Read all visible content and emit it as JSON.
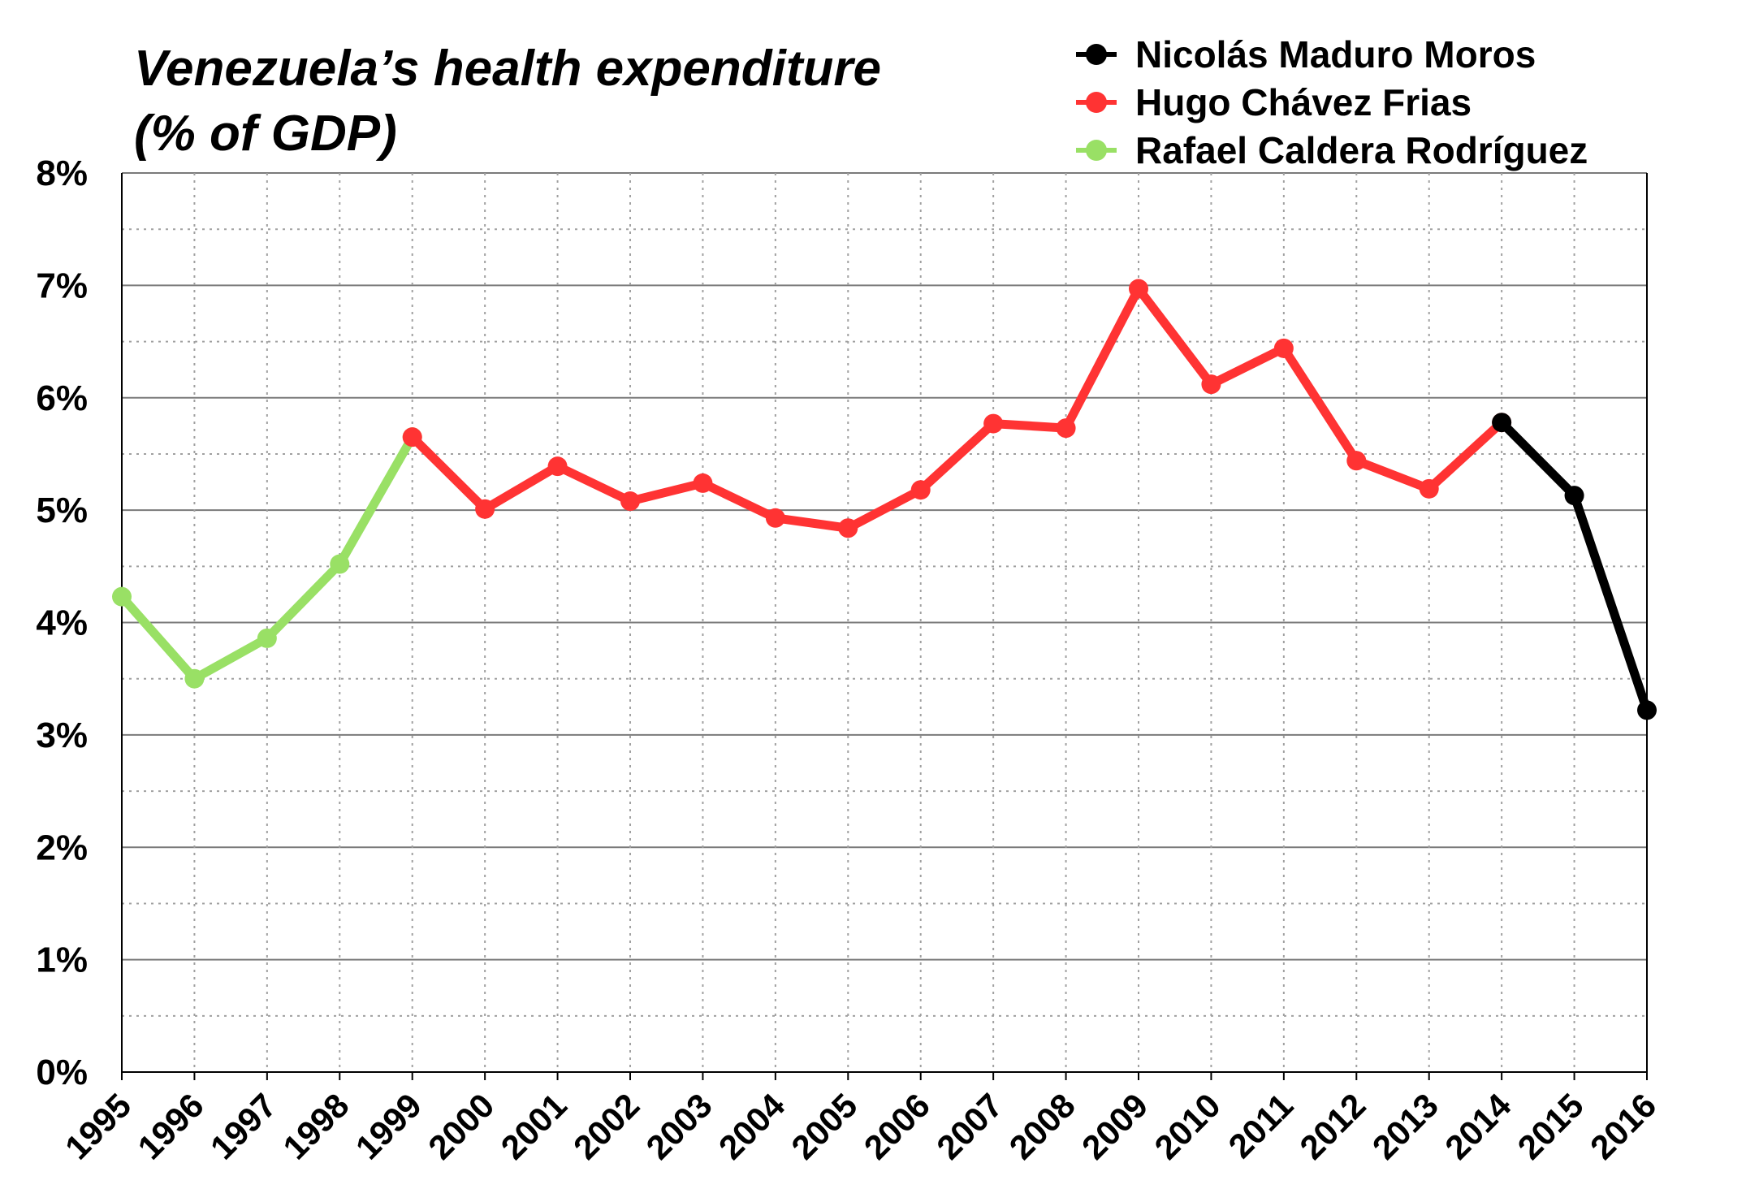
{
  "chart_data": {
    "type": "line",
    "title": "Venezuela’s health expenditure (% of GDP)",
    "title_lines": [
      "Venezuela’s health expenditure",
      "(% of GDP)"
    ],
    "xlabel": "",
    "ylabel": "",
    "ylim": [
      0,
      8
    ],
    "yticks": [
      "0%",
      "1%",
      "2%",
      "3%",
      "4%",
      "5%",
      "6%",
      "7%",
      "8%"
    ],
    "categories": [
      "1995",
      "1996",
      "1997",
      "1998",
      "1999",
      "2000",
      "2001",
      "2002",
      "2003",
      "2004",
      "2005",
      "2006",
      "2007",
      "2008",
      "2009",
      "2010",
      "2011",
      "2012",
      "2013",
      "2014",
      "2015",
      "2016"
    ],
    "grid": true,
    "legend_position": "top-right",
    "series": [
      {
        "name": "Nicolás Maduro Moros",
        "color": "#000000",
        "x": [
          "2014",
          "2015",
          "2016"
        ],
        "values": [
          5.78,
          5.13,
          3.22
        ]
      },
      {
        "name": "Hugo Chávez Frias",
        "color": "#ff3333",
        "x": [
          "1999",
          "2000",
          "2001",
          "2002",
          "2003",
          "2004",
          "2005",
          "2006",
          "2007",
          "2008",
          "2009",
          "2010",
          "2011",
          "2012",
          "2013",
          "2014"
        ],
        "values": [
          5.65,
          5.01,
          5.39,
          5.08,
          5.24,
          4.93,
          4.84,
          5.18,
          5.77,
          5.73,
          6.97,
          6.12,
          6.44,
          5.44,
          5.19,
          5.78
        ]
      },
      {
        "name": "Rafael Caldera Rodríguez",
        "color": "#99e065",
        "x": [
          "1995",
          "1996",
          "1997",
          "1998",
          "1999"
        ],
        "values": [
          4.23,
          3.5,
          3.86,
          4.52,
          5.65
        ]
      }
    ]
  }
}
